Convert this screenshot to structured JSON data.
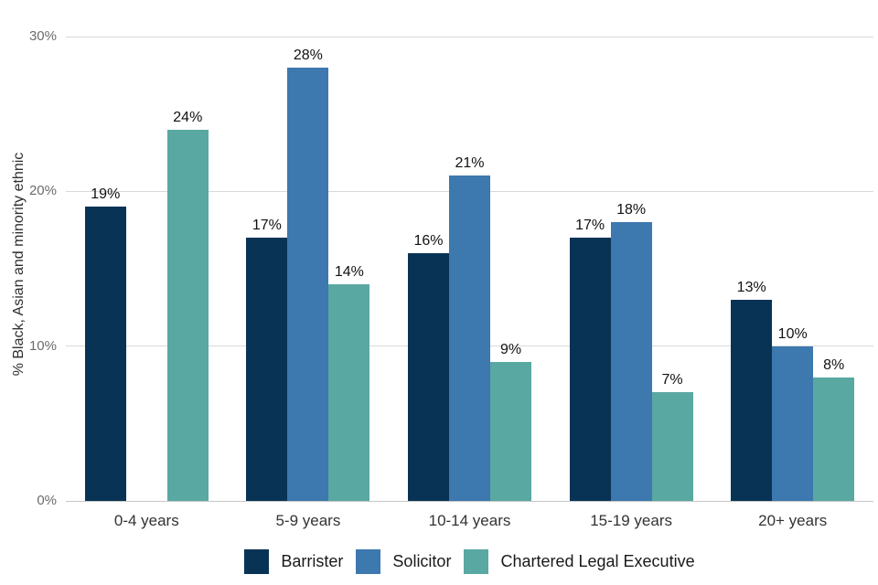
{
  "chart_data": {
    "type": "bar",
    "title": "",
    "xlabel": "",
    "ylabel": "% Black, Asian and minority ethnic",
    "categories": [
      "0-4 years",
      "5-9 years",
      "10-14 years",
      "15-19 years",
      "20+ years"
    ],
    "series": [
      {
        "name": "Barrister",
        "color": "#083355",
        "values": [
          19,
          17,
          16,
          17,
          13
        ],
        "labels": [
          "19%",
          "17%",
          "16%",
          "17%",
          "13%"
        ]
      },
      {
        "name": "Solicitor",
        "color": "#3d78ae",
        "values": [
          null,
          28,
          21,
          18,
          10
        ],
        "labels": [
          null,
          "28%",
          "21%",
          "18%",
          "10%"
        ]
      },
      {
        "name": "Chartered Legal Executive",
        "color": "#5aa8a2",
        "values": [
          24,
          14,
          9,
          7,
          8
        ],
        "labels": [
          "24%",
          "14%",
          "9%",
          "7%",
          "8%"
        ]
      }
    ],
    "y_ticks": [
      "0%",
      "10%",
      "20%",
      "30%"
    ],
    "y_tick_values": [
      0,
      10,
      20,
      30
    ],
    "ylim": [
      0,
      30
    ],
    "grid": true,
    "legend_position": "bottom",
    "colors": {
      "background": "#ffffff",
      "gridline": "#d9d9d9",
      "axis_line": "#c6c6c6",
      "tick_text": "#6b6b6b",
      "category_text": "#333333",
      "value_label_text": "#111111",
      "legend_text": "#1a1a1a"
    }
  }
}
